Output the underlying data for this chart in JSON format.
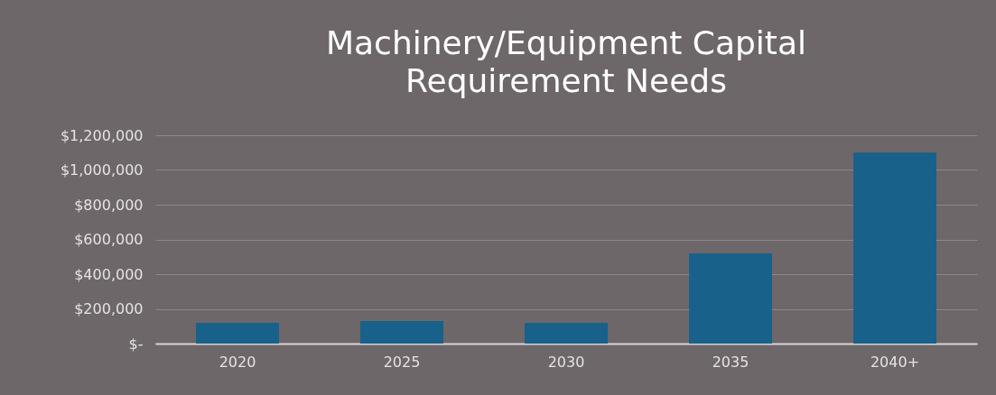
{
  "chart_data": {
    "type": "bar",
    "title": "Machinery/Equipment Capital\nRequirement Needs",
    "categories": [
      "2020",
      "2025",
      "2030",
      "2035",
      "2040+"
    ],
    "values": [
      120000,
      130000,
      120000,
      520000,
      1100000
    ],
    "color": "#17618a",
    "ylim": [
      0,
      1200000
    ],
    "yticks": [
      {
        "value": 0,
        "label": "$-"
      },
      {
        "value": 200000,
        "label": "$200,000"
      },
      {
        "value": 400000,
        "label": "$400,000"
      },
      {
        "value": 600000,
        "label": "$600,000"
      },
      {
        "value": 800000,
        "label": "$800,000"
      },
      {
        "value": 1000000,
        "label": "$1,000,000"
      },
      {
        "value": 1200000,
        "label": "$1,200,000"
      }
    ],
    "grid": "y"
  }
}
